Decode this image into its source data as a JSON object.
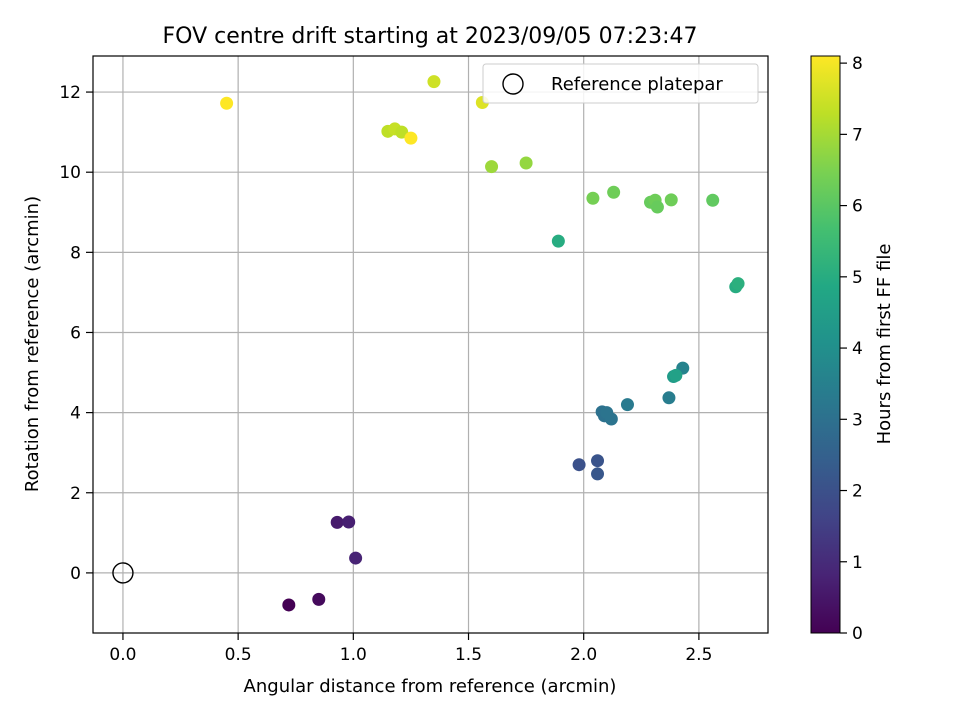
{
  "chart_data": {
    "type": "scatter",
    "title": "FOV centre drift starting at 2023/09/05 07:23:47",
    "xlabel": "Angular distance from reference (arcmin)",
    "ylabel": "Rotation from reference (arcmin)",
    "xlim": [
      -0.13,
      2.8
    ],
    "ylim": [
      -1.5,
      12.9
    ],
    "xticks": [
      0.0,
      0.5,
      1.0,
      1.5,
      2.0,
      2.5
    ],
    "xtick_labels": [
      "0.0",
      "0.5",
      "1.0",
      "1.5",
      "2.0",
      "2.5"
    ],
    "yticks": [
      0,
      2,
      4,
      6,
      8,
      10,
      12
    ],
    "ytick_labels": [
      "0",
      "2",
      "4",
      "6",
      "8",
      "10",
      "12"
    ],
    "grid": true,
    "legend": {
      "position": "top-right",
      "entries": [
        "Reference platepar"
      ]
    },
    "reference_point": {
      "x": 0.0,
      "y": 0.0,
      "label": "Reference platepar"
    },
    "colorbar": {
      "label": "Hours from first FF file",
      "colormap": "viridis",
      "min": 0,
      "max": 8.1,
      "ticks": [
        0,
        1,
        2,
        3,
        4,
        5,
        6,
        7,
        8
      ],
      "tick_labels": [
        "0",
        "1",
        "2",
        "3",
        "4",
        "5",
        "6",
        "7",
        "8"
      ]
    },
    "points": [
      {
        "x": 0.72,
        "y": -0.8,
        "c": 0.0
      },
      {
        "x": 0.85,
        "y": -0.66,
        "c": 0.2
      },
      {
        "x": 0.93,
        "y": 1.26,
        "c": 0.6
      },
      {
        "x": 0.98,
        "y": 1.27,
        "c": 0.7
      },
      {
        "x": 1.01,
        "y": 0.37,
        "c": 0.8
      },
      {
        "x": 1.98,
        "y": 2.7,
        "c": 2.0
      },
      {
        "x": 2.06,
        "y": 2.8,
        "c": 2.1
      },
      {
        "x": 2.06,
        "y": 2.47,
        "c": 2.2
      },
      {
        "x": 2.08,
        "y": 4.02,
        "c": 3.0
      },
      {
        "x": 2.09,
        "y": 3.92,
        "c": 3.0
      },
      {
        "x": 2.1,
        "y": 4.0,
        "c": 3.1
      },
      {
        "x": 2.12,
        "y": 3.84,
        "c": 3.1
      },
      {
        "x": 2.19,
        "y": 4.2,
        "c": 3.3
      },
      {
        "x": 2.37,
        "y": 4.37,
        "c": 3.4
      },
      {
        "x": 2.43,
        "y": 5.11,
        "c": 3.6
      },
      {
        "x": 2.39,
        "y": 4.9,
        "c": 4.4
      },
      {
        "x": 2.4,
        "y": 4.93,
        "c": 4.6
      },
      {
        "x": 1.89,
        "y": 8.28,
        "c": 5.0
      },
      {
        "x": 2.66,
        "y": 7.14,
        "c": 5.0
      },
      {
        "x": 2.67,
        "y": 7.22,
        "c": 5.1
      },
      {
        "x": 2.04,
        "y": 9.35,
        "c": 6.4
      },
      {
        "x": 2.13,
        "y": 9.5,
        "c": 6.3
      },
      {
        "x": 2.29,
        "y": 9.25,
        "c": 6.2
      },
      {
        "x": 2.31,
        "y": 9.3,
        "c": 6.3
      },
      {
        "x": 2.32,
        "y": 9.13,
        "c": 6.2
      },
      {
        "x": 2.38,
        "y": 9.31,
        "c": 6.3
      },
      {
        "x": 2.56,
        "y": 9.3,
        "c": 6.1
      },
      {
        "x": 1.6,
        "y": 10.14,
        "c": 6.9
      },
      {
        "x": 1.75,
        "y": 10.23,
        "c": 6.8
      },
      {
        "x": 1.15,
        "y": 11.02,
        "c": 7.3
      },
      {
        "x": 1.18,
        "y": 11.08,
        "c": 7.4
      },
      {
        "x": 1.21,
        "y": 11.0,
        "c": 7.3
      },
      {
        "x": 1.25,
        "y": 10.85,
        "c": 8.1
      },
      {
        "x": 1.35,
        "y": 12.26,
        "c": 7.5
      },
      {
        "x": 1.56,
        "y": 11.74,
        "c": 7.7
      },
      {
        "x": 0.45,
        "y": 11.72,
        "c": 8.1
      }
    ]
  }
}
